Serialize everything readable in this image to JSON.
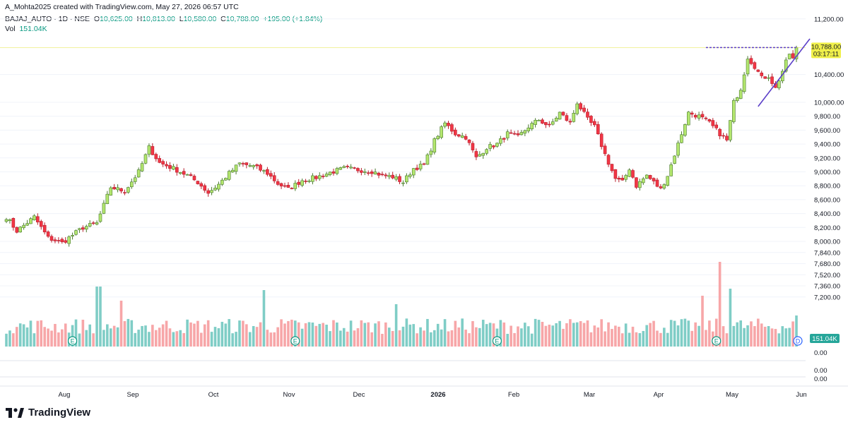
{
  "header": {
    "credit": "A_Mohta2025 created with TradingView.com, May 27, 2026 06:57 UTC",
    "symbol": "BAJAJ_AUTO · 1D · NSE",
    "o_label": "O",
    "o_value": "10,625.00",
    "h_label": "H",
    "h_value": "10,813.00",
    "l_label": "L",
    "l_value": "10,580.00",
    "c_label": "C",
    "c_value": "10,788.00",
    "change": "+195.00 (+1.84%)",
    "vol_label": "Vol",
    "vol_value": "151.04K"
  },
  "footer": {
    "brand": "TradingView"
  },
  "colors": {
    "up": "#089981",
    "down": "#F23645",
    "up_candle": "#B3E66E",
    "vol_up": "#7FCDC6",
    "vol_down": "#F7A6A8",
    "trend": "#5B3FC8"
  },
  "chart_data": {
    "type": "candlestick",
    "title": "",
    "price_axis_ticks": [
      "11,200.00",
      "10,400.00",
      "10,000.00",
      "9,800.00",
      "9,600.00",
      "9,400.00",
      "9,200.00",
      "9,000.00",
      "8,800.00",
      "8,600.00",
      "8,400.00",
      "8,200.00",
      "8,000.00",
      "7,840.00",
      "7,680.00",
      "7,520.00",
      "7,360.00",
      "7,200.00"
    ],
    "lower_pane_ticks": [
      "0.00",
      "0.00",
      "0.00"
    ],
    "price_tick_values": [
      11200,
      10400,
      10000,
      9800,
      9600,
      9400,
      9200,
      9000,
      8800,
      8600,
      8400,
      8200,
      8000,
      7840,
      7680,
      7520,
      7360,
      7200
    ],
    "time_labels": [
      "Aug",
      "Sep",
      "Oct",
      "Nov",
      "Dec",
      "2026",
      "Feb",
      "Mar",
      "Apr",
      "May",
      "Jun"
    ],
    "last_price_label": "10,788.00",
    "countdown_label": "03:17:11",
    "volume_label": "151.04K",
    "earnings_marker_label": "E",
    "dividend_marker_label": "D",
    "earnings_positions": [
      "Aug",
      "Nov",
      "Feb",
      "May"
    ],
    "resistance_level": 10788,
    "ohlc_last": {
      "open": 10625,
      "high": 10813,
      "low": 10580,
      "close": 10788
    },
    "anchors": [
      {
        "t": 0,
        "p": 8350
      },
      {
        "t": 3,
        "p": 8150
      },
      {
        "t": 8,
        "p": 8350
      },
      {
        "t": 12,
        "p": 8050
      },
      {
        "t": 16,
        "p": 7980
      },
      {
        "t": 22,
        "p": 8200
      },
      {
        "t": 26,
        "p": 8260
      },
      {
        "t": 30,
        "p": 8780
      },
      {
        "t": 34,
        "p": 8720
      },
      {
        "t": 38,
        "p": 9000
      },
      {
        "t": 41,
        "p": 9350
      },
      {
        "t": 44,
        "p": 9130
      },
      {
        "t": 48,
        "p": 9050
      },
      {
        "t": 52,
        "p": 8950
      },
      {
        "t": 55,
        "p": 8850
      },
      {
        "t": 58,
        "p": 8700
      },
      {
        "t": 61,
        "p": 8820
      },
      {
        "t": 64,
        "p": 8980
      },
      {
        "t": 67,
        "p": 9120
      },
      {
        "t": 71,
        "p": 9080
      },
      {
        "t": 75,
        "p": 8980
      },
      {
        "t": 78,
        "p": 8830
      },
      {
        "t": 81,
        "p": 8750
      },
      {
        "t": 85,
        "p": 8880
      },
      {
        "t": 89,
        "p": 8920
      },
      {
        "t": 93,
        "p": 8990
      },
      {
        "t": 97,
        "p": 9050
      },
      {
        "t": 101,
        "p": 9030
      },
      {
        "t": 105,
        "p": 9010
      },
      {
        "t": 108,
        "p": 8950
      },
      {
        "t": 111,
        "p": 8930
      },
      {
        "t": 114,
        "p": 8850
      },
      {
        "t": 117,
        "p": 9050
      },
      {
        "t": 120,
        "p": 9100
      },
      {
        "t": 123,
        "p": 9450
      },
      {
        "t": 126,
        "p": 9700
      },
      {
        "t": 129,
        "p": 9550
      },
      {
        "t": 132,
        "p": 9500
      },
      {
        "t": 135,
        "p": 9200
      },
      {
        "t": 138,
        "p": 9350
      },
      {
        "t": 141,
        "p": 9400
      },
      {
        "t": 144,
        "p": 9550
      },
      {
        "t": 147,
        "p": 9500
      },
      {
        "t": 150,
        "p": 9650
      },
      {
        "t": 153,
        "p": 9750
      },
      {
        "t": 156,
        "p": 9650
      },
      {
        "t": 159,
        "p": 9850
      },
      {
        "t": 162,
        "p": 9700
      },
      {
        "t": 164,
        "p": 10000
      },
      {
        "t": 167,
        "p": 9750
      },
      {
        "t": 169,
        "p": 9650
      },
      {
        "t": 172,
        "p": 9250
      },
      {
        "t": 175,
        "p": 8900
      },
      {
        "t": 177,
        "p": 8850
      },
      {
        "t": 179,
        "p": 9050
      },
      {
        "t": 181,
        "p": 8800
      },
      {
        "t": 184,
        "p": 8950
      },
      {
        "t": 186,
        "p": 8850
      },
      {
        "t": 188,
        "p": 8750
      },
      {
        "t": 190,
        "p": 8950
      },
      {
        "t": 193,
        "p": 9400
      },
      {
        "t": 196,
        "p": 9850
      },
      {
        "t": 199,
        "p": 9800
      },
      {
        "t": 202,
        "p": 9700
      },
      {
        "t": 205,
        "p": 9550
      },
      {
        "t": 207,
        "p": 9450
      },
      {
        "t": 209,
        "p": 10000
      },
      {
        "t": 211,
        "p": 10200
      },
      {
        "t": 213,
        "p": 10650
      },
      {
        "t": 215,
        "p": 10520
      },
      {
        "t": 217,
        "p": 10350
      },
      {
        "t": 219,
        "p": 10380
      },
      {
        "t": 221,
        "p": 10200
      },
      {
        "t": 223,
        "p": 10450
      },
      {
        "t": 225,
        "p": 10700
      },
      {
        "t": 226,
        "p": 10625
      },
      {
        "t": 227,
        "p": 10788
      }
    ]
  }
}
